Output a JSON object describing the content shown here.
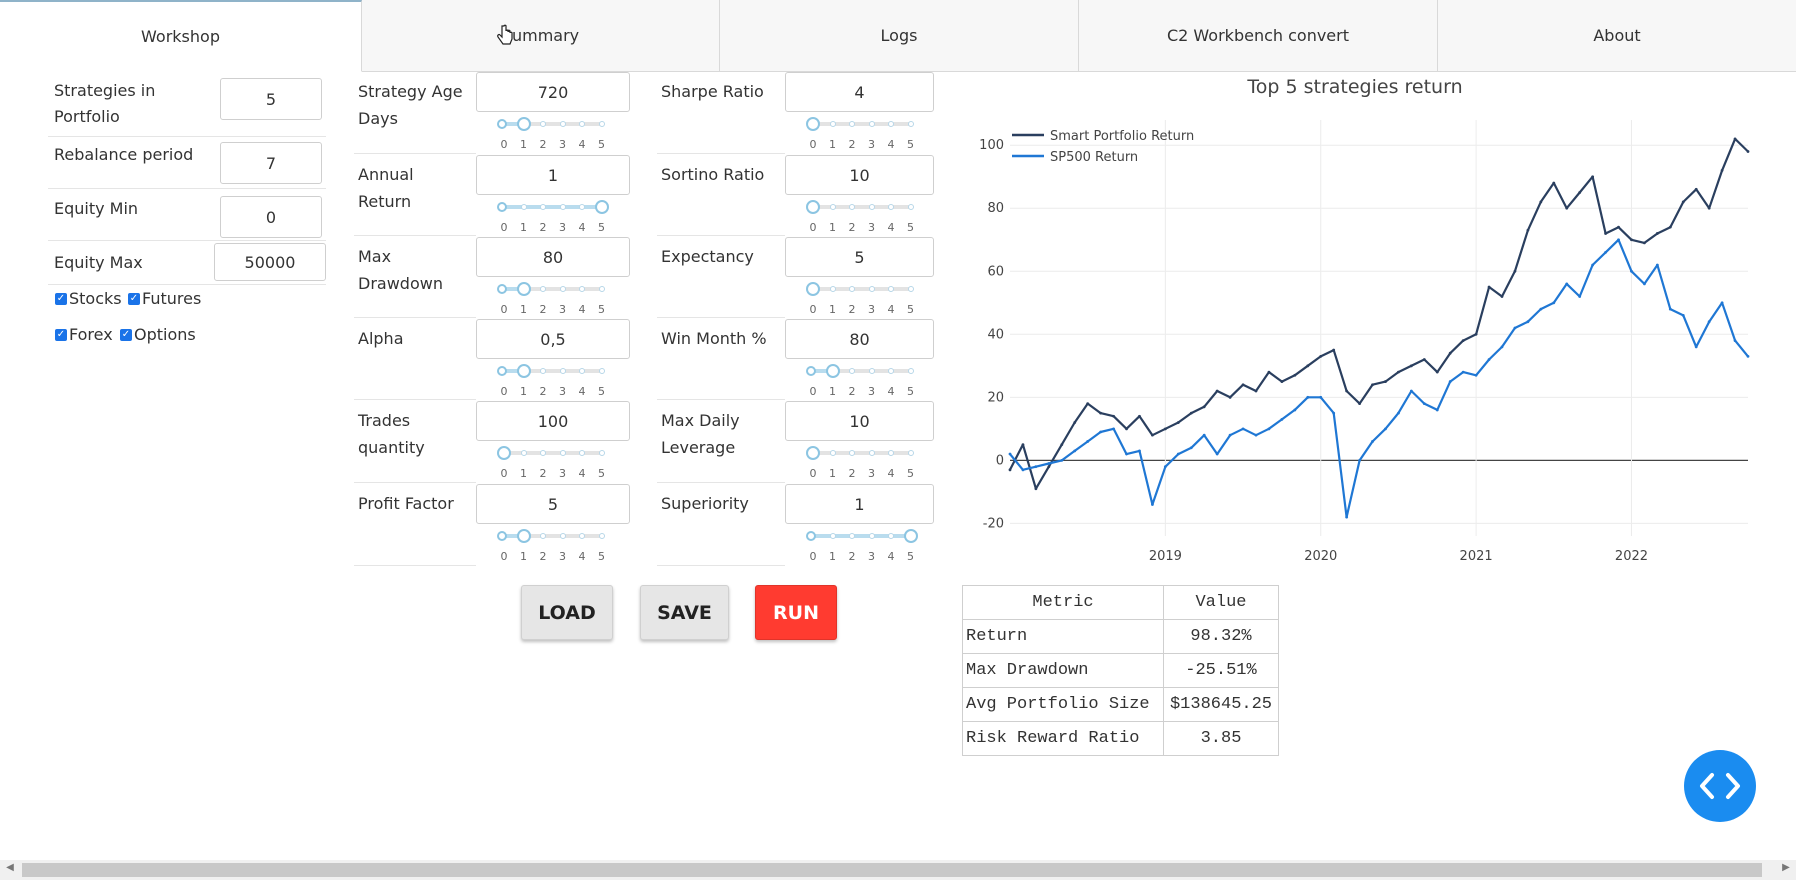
{
  "tabs": [
    "Workshop",
    "Summary",
    "Logs",
    "C2 Workbench convert",
    "About"
  ],
  "left_panel": {
    "rows": [
      {
        "label": "Strategies in Portfolio",
        "value": "5"
      },
      {
        "label": "Rebalance period",
        "value": "7"
      },
      {
        "label": "Equity Min",
        "value": "0"
      },
      {
        "label": "Equity Max",
        "value": "50000"
      }
    ],
    "checkboxes": [
      {
        "label": "Stocks",
        "checked": true
      },
      {
        "label": "Futures",
        "checked": true
      },
      {
        "label": "Forex",
        "checked": true
      },
      {
        "label": "Options",
        "checked": true
      }
    ]
  },
  "filters": {
    "left": [
      {
        "label": "Strategy Age Days",
        "value": "720",
        "slider": {
          "from": 0,
          "to": 1
        }
      },
      {
        "label": "Annual Return",
        "value": "1",
        "slider": {
          "from": 0,
          "to": 5
        }
      },
      {
        "label": "Max Drawdown",
        "value": "80",
        "slider": {
          "from": 0,
          "to": 1
        }
      },
      {
        "label": "Alpha",
        "value": "0,5",
        "slider": {
          "from": 0,
          "to": 1
        }
      },
      {
        "label": "Trades quantity",
        "value": "100",
        "slider": {
          "from": 0,
          "to": 0
        }
      },
      {
        "label": "Profit Factor",
        "value": "5",
        "slider": {
          "from": 0,
          "to": 1
        }
      }
    ],
    "right": [
      {
        "label": "Sharpe Ratio",
        "value": "4",
        "slider": {
          "from": 0,
          "to": 0
        }
      },
      {
        "label": "Sortino Ratio",
        "value": "10",
        "slider": {
          "from": 0,
          "to": 0
        }
      },
      {
        "label": "Expectancy",
        "value": "5",
        "slider": {
          "from": 0,
          "to": 0
        }
      },
      {
        "label": "Win Month %",
        "value": "80",
        "slider": {
          "from": 0,
          "to": 1
        }
      },
      {
        "label": "Max Daily Leverage",
        "value": "10",
        "slider": {
          "from": 0,
          "to": 0
        }
      },
      {
        "label": "Superiority",
        "value": "1",
        "slider": {
          "from": 0,
          "to": 5
        }
      }
    ],
    "tick_labels": [
      "0",
      "1",
      "2",
      "3",
      "4",
      "5"
    ]
  },
  "buttons": {
    "load": "LOAD",
    "save": "SAVE",
    "run": "RUN"
  },
  "colors": {
    "run": "#ff3b30",
    "smart": "#2a3f5f",
    "sp500": "#1f77d4",
    "fab": "#1a8cf0"
  },
  "chart_data": {
    "type": "line",
    "title": "Top 5 strategies return",
    "xlabel": "",
    "ylabel": "",
    "x_ticks": [
      "2019",
      "2020",
      "2021",
      "2022"
    ],
    "y_ticks": [
      -20,
      0,
      20,
      40,
      60,
      80,
      100
    ],
    "xlim": [
      "2018-01",
      "2022-10"
    ],
    "ylim": [
      -24,
      108
    ],
    "legend_position": "top-left",
    "grid": true,
    "series": [
      {
        "name": "Smart Portfolio Return",
        "color": "#2a3f5f",
        "points": [
          [
            "2018-01",
            -3
          ],
          [
            "2018-02",
            5
          ],
          [
            "2018-03",
            -9
          ],
          [
            "2018-04",
            -2
          ],
          [
            "2018-05",
            5
          ],
          [
            "2018-06",
            12
          ],
          [
            "2018-07",
            18
          ],
          [
            "2018-08",
            15
          ],
          [
            "2018-09",
            14
          ],
          [
            "2018-10",
            10
          ],
          [
            "2018-11",
            14
          ],
          [
            "2018-12",
            8
          ],
          [
            "2019-01",
            10
          ],
          [
            "2019-02",
            12
          ],
          [
            "2019-03",
            15
          ],
          [
            "2019-04",
            17
          ],
          [
            "2019-05",
            22
          ],
          [
            "2019-06",
            20
          ],
          [
            "2019-07",
            24
          ],
          [
            "2019-08",
            22
          ],
          [
            "2019-09",
            28
          ],
          [
            "2019-10",
            25
          ],
          [
            "2019-11",
            27
          ],
          [
            "2019-12",
            30
          ],
          [
            "2020-01",
            33
          ],
          [
            "2020-02",
            35
          ],
          [
            "2020-03",
            22
          ],
          [
            "2020-04",
            18
          ],
          [
            "2020-05",
            24
          ],
          [
            "2020-06",
            25
          ],
          [
            "2020-07",
            28
          ],
          [
            "2020-08",
            30
          ],
          [
            "2020-09",
            32
          ],
          [
            "2020-10",
            28
          ],
          [
            "2020-11",
            34
          ],
          [
            "2020-12",
            38
          ],
          [
            "2021-01",
            40
          ],
          [
            "2021-02",
            55
          ],
          [
            "2021-03",
            52
          ],
          [
            "2021-04",
            60
          ],
          [
            "2021-05",
            73
          ],
          [
            "2021-06",
            82
          ],
          [
            "2021-07",
            88
          ],
          [
            "2021-08",
            80
          ],
          [
            "2021-09",
            85
          ],
          [
            "2021-10",
            90
          ],
          [
            "2021-11",
            72
          ],
          [
            "2021-12",
            74
          ],
          [
            "2022-01",
            70
          ],
          [
            "2022-02",
            69
          ],
          [
            "2022-03",
            72
          ],
          [
            "2022-04",
            74
          ],
          [
            "2022-05",
            82
          ],
          [
            "2022-06",
            86
          ],
          [
            "2022-07",
            80
          ],
          [
            "2022-08",
            92
          ],
          [
            "2022-09",
            102
          ],
          [
            "2022-10",
            98
          ]
        ]
      },
      {
        "name": "SP500 Return",
        "color": "#1f77d4",
        "points": [
          [
            "2018-01",
            2
          ],
          [
            "2018-02",
            -3
          ],
          [
            "2018-03",
            -2
          ],
          [
            "2018-04",
            -1
          ],
          [
            "2018-05",
            0
          ],
          [
            "2018-06",
            3
          ],
          [
            "2018-07",
            6
          ],
          [
            "2018-08",
            9
          ],
          [
            "2018-09",
            10
          ],
          [
            "2018-10",
            2
          ],
          [
            "2018-11",
            3
          ],
          [
            "2018-12",
            -14
          ],
          [
            "2019-01",
            -2
          ],
          [
            "2019-02",
            2
          ],
          [
            "2019-03",
            4
          ],
          [
            "2019-04",
            8
          ],
          [
            "2019-05",
            2
          ],
          [
            "2019-06",
            8
          ],
          [
            "2019-07",
            10
          ],
          [
            "2019-08",
            8
          ],
          [
            "2019-09",
            10
          ],
          [
            "2019-10",
            13
          ],
          [
            "2019-11",
            16
          ],
          [
            "2019-12",
            20
          ],
          [
            "2020-01",
            20
          ],
          [
            "2020-02",
            15
          ],
          [
            "2020-03",
            -18
          ],
          [
            "2020-04",
            0
          ],
          [
            "2020-05",
            6
          ],
          [
            "2020-06",
            10
          ],
          [
            "2020-07",
            15
          ],
          [
            "2020-08",
            22
          ],
          [
            "2020-09",
            18
          ],
          [
            "2020-10",
            16
          ],
          [
            "2020-11",
            25
          ],
          [
            "2020-12",
            28
          ],
          [
            "2021-01",
            27
          ],
          [
            "2021-02",
            32
          ],
          [
            "2021-03",
            36
          ],
          [
            "2021-04",
            42
          ],
          [
            "2021-05",
            44
          ],
          [
            "2021-06",
            48
          ],
          [
            "2021-07",
            50
          ],
          [
            "2021-08",
            56
          ],
          [
            "2021-09",
            52
          ],
          [
            "2021-10",
            62
          ],
          [
            "2021-11",
            66
          ],
          [
            "2021-12",
            70
          ],
          [
            "2022-01",
            60
          ],
          [
            "2022-02",
            56
          ],
          [
            "2022-03",
            62
          ],
          [
            "2022-04",
            48
          ],
          [
            "2022-05",
            46
          ],
          [
            "2022-06",
            36
          ],
          [
            "2022-07",
            44
          ],
          [
            "2022-08",
            50
          ],
          [
            "2022-09",
            38
          ],
          [
            "2022-10",
            33
          ]
        ]
      }
    ],
    "zero_line": true
  },
  "metrics_table": {
    "headers": [
      "Metric",
      "Value"
    ],
    "rows": [
      [
        "Return",
        "98.32%"
      ],
      [
        "Max Drawdown",
        "-25.51%"
      ],
      [
        "Avg Portfolio Size",
        "$138645.25"
      ],
      [
        "Risk Reward Ratio",
        "3.85"
      ]
    ]
  }
}
